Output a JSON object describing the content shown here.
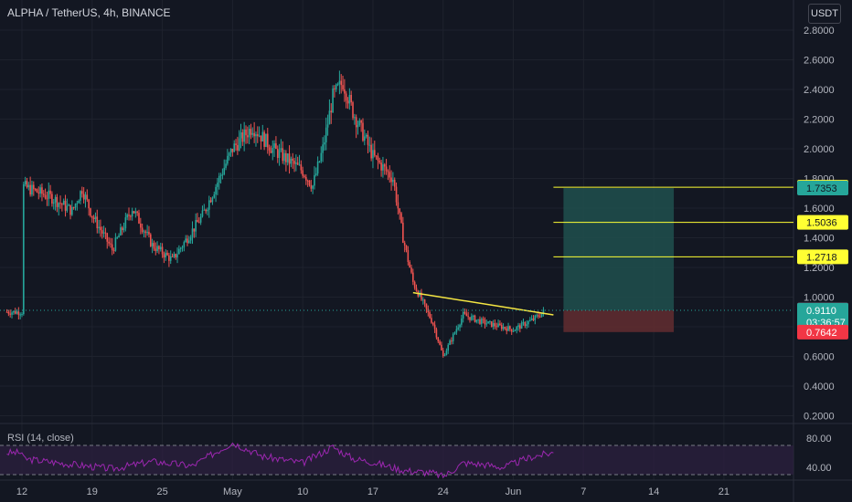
{
  "header": {
    "title": "ALPHA / TetherUS, 4h, BINANCE",
    "currency": "USDT"
  },
  "colors": {
    "background": "#131722",
    "grid": "#1e222d",
    "up": "#26a69a",
    "down": "#ef5350",
    "trendline": "#f5e642",
    "target_line": "#ffff33",
    "profit_zone": "#1f4d4b",
    "loss_zone": "#5e2b30",
    "rsi": "#9c27b0",
    "rsi_band": "#2a1f3d",
    "current_price": "#26a69a",
    "stop_price": "#f23645"
  },
  "chart_data": {
    "type": "candlestick",
    "title": "ALPHA / TetherUS, 4h, BINANCE",
    "y_axis_ticks": [
      0.2,
      0.4,
      0.6,
      0.8,
      1.0,
      1.2,
      1.4,
      1.6,
      1.8,
      2.0,
      2.2,
      2.4,
      2.6,
      2.8
    ],
    "y_axis_labels": [
      "0.2000",
      "0.4000",
      "0.6000",
      "0.8000",
      "1.0000",
      "1.2000",
      "1.4000",
      "1.6000",
      "1.8000",
      "2.0000",
      "2.2000",
      "2.4000",
      "2.6000",
      "2.8000"
    ],
    "ylim": [
      0.16,
      2.88
    ],
    "x_axis_labels": [
      "12",
      "19",
      "25",
      "May",
      "10",
      "17",
      "24",
      "Jun",
      "7",
      "14",
      "21"
    ],
    "x_axis_dates": [
      "2021-04-12",
      "2021-04-19",
      "2021-04-26",
      "2021-05-03",
      "2021-05-10",
      "2021-05-17",
      "2021-05-24",
      "2021-05-31",
      "2021-06-07",
      "2021-06-14",
      "2021-06-21"
    ],
    "price_path": [
      {
        "date": "2021-04-12",
        "price": 1.75
      },
      {
        "date": "2021-04-15",
        "price": 1.67
      },
      {
        "date": "2021-04-17",
        "price": 1.58
      },
      {
        "date": "2021-04-18",
        "price": 1.73
      },
      {
        "date": "2021-04-19",
        "price": 1.55
      },
      {
        "date": "2021-04-21",
        "price": 1.32
      },
      {
        "date": "2021-04-23",
        "price": 1.6
      },
      {
        "date": "2021-04-25",
        "price": 1.35
      },
      {
        "date": "2021-04-27",
        "price": 1.25
      },
      {
        "date": "2021-04-30",
        "price": 1.55
      },
      {
        "date": "2021-05-03",
        "price": 2.0
      },
      {
        "date": "2021-05-05",
        "price": 2.15
      },
      {
        "date": "2021-05-07",
        "price": 2.0
      },
      {
        "date": "2021-05-10",
        "price": 1.85
      },
      {
        "date": "2021-05-11",
        "price": 1.75
      },
      {
        "date": "2021-05-12",
        "price": 2.0
      },
      {
        "date": "2021-05-13",
        "price": 2.35
      },
      {
        "date": "2021-05-14",
        "price": 2.45
      },
      {
        "date": "2021-05-15",
        "price": 2.25
      },
      {
        "date": "2021-05-17",
        "price": 1.95
      },
      {
        "date": "2021-05-19",
        "price": 1.8
      },
      {
        "date": "2021-05-20",
        "price": 1.4
      },
      {
        "date": "2021-05-21",
        "price": 1.1
      },
      {
        "date": "2021-05-23",
        "price": 0.82
      },
      {
        "date": "2021-05-24",
        "price": 0.6
      },
      {
        "date": "2021-05-26",
        "price": 0.88
      },
      {
        "date": "2021-05-28",
        "price": 0.83
      },
      {
        "date": "2021-05-31",
        "price": 0.78
      },
      {
        "date": "2021-06-02",
        "price": 0.85
      },
      {
        "date": "2021-06-03",
        "price": 0.9
      }
    ],
    "trendline": [
      {
        "date": "2021-05-21",
        "price": 1.03
      },
      {
        "date": "2021-06-04",
        "price": 0.88
      }
    ],
    "horizontal_levels": [
      {
        "label": "1.7408",
        "price": 1.7408,
        "color": "#ffff33"
      },
      {
        "label": "1.5036",
        "price": 1.5036,
        "color": "#ffff33"
      },
      {
        "label": "1.2718",
        "price": 1.2718,
        "color": "#ffff33"
      }
    ],
    "position": {
      "entry": 0.91,
      "target": 1.7353,
      "stop": 0.7642,
      "start": "2021-06-05",
      "end": "2021-06-16"
    },
    "price_labels": [
      {
        "text": "1.7408",
        "price": 1.7408,
        "style": "yellow"
      },
      {
        "text": "1.7353",
        "price": 1.7353,
        "style": "teal"
      },
      {
        "text": "1.5036",
        "price": 1.5036,
        "style": "yellow"
      },
      {
        "text": "1.2718",
        "price": 1.2718,
        "style": "yellow"
      },
      {
        "text": "0.9132",
        "price": 0.9132,
        "style": "gray"
      },
      {
        "text": "0.9110",
        "price": 0.911,
        "style": "current",
        "sub": "03:36:57"
      },
      {
        "text": "0.7642",
        "price": 0.7642,
        "style": "red"
      }
    ],
    "rsi": {
      "label": "RSI (14, close)",
      "ylim": [
        25,
        95
      ],
      "bands": [
        70,
        30
      ],
      "tick_labels": [
        {
          "text": "80.00",
          "value": 80
        },
        {
          "text": "40.00",
          "value": 40
        }
      ],
      "path": [
        {
          "date": "2021-04-12",
          "value": 52
        },
        {
          "date": "2021-04-17",
          "value": 44
        },
        {
          "date": "2021-04-21",
          "value": 38
        },
        {
          "date": "2021-04-25",
          "value": 48
        },
        {
          "date": "2021-04-29",
          "value": 42
        },
        {
          "date": "2021-05-01",
          "value": 58
        },
        {
          "date": "2021-05-03",
          "value": 74
        },
        {
          "date": "2021-05-06",
          "value": 55
        },
        {
          "date": "2021-05-10",
          "value": 46
        },
        {
          "date": "2021-05-13",
          "value": 68
        },
        {
          "date": "2021-05-15",
          "value": 52
        },
        {
          "date": "2021-05-17",
          "value": 47
        },
        {
          "date": "2021-05-20",
          "value": 36
        },
        {
          "date": "2021-05-23",
          "value": 32
        },
        {
          "date": "2021-05-24",
          "value": 27
        },
        {
          "date": "2021-05-26",
          "value": 46
        },
        {
          "date": "2021-05-28",
          "value": 44
        },
        {
          "date": "2021-05-30",
          "value": 40
        },
        {
          "date": "2021-06-02",
          "value": 55
        },
        {
          "date": "2021-06-04",
          "value": 60
        }
      ]
    }
  }
}
